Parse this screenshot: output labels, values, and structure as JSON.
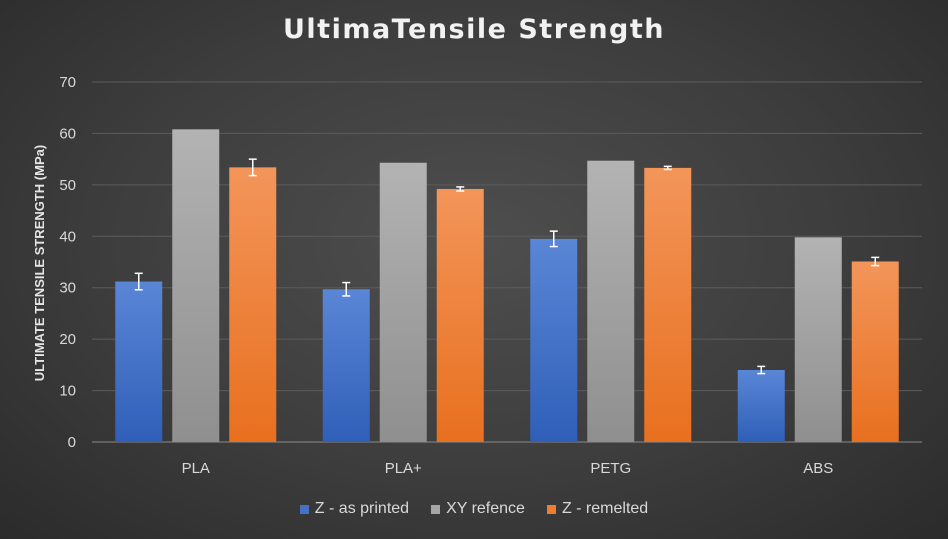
{
  "chart_data": {
    "type": "bar",
    "title": "UltimaTensile Strength",
    "ylabel": "ULTIMATE TENSILE STRENGTH (MPa)",
    "xlabel": "",
    "ylim": [
      0,
      70
    ],
    "yticks": [
      0,
      10,
      20,
      30,
      40,
      50,
      60,
      70
    ],
    "grid": true,
    "legend_position": "bottom",
    "categories": [
      "PLA",
      "PLA+",
      "PETG",
      "ABS"
    ],
    "series": [
      {
        "name": "Z - as printed",
        "color": "#4472c4",
        "values": [
          31.2,
          29.7,
          39.5,
          14.0
        ],
        "errors": [
          1.6,
          1.3,
          1.5,
          0.7
        ]
      },
      {
        "name": "XY refence",
        "color": "#a5a5a5",
        "values": [
          60.8,
          54.3,
          54.7,
          39.8
        ],
        "errors": null
      },
      {
        "name": "Z - remelted",
        "color": "#ed7d31",
        "values": [
          53.4,
          49.2,
          53.3,
          35.1
        ],
        "errors": [
          1.6,
          0.4,
          0.3,
          0.8
        ]
      }
    ]
  }
}
